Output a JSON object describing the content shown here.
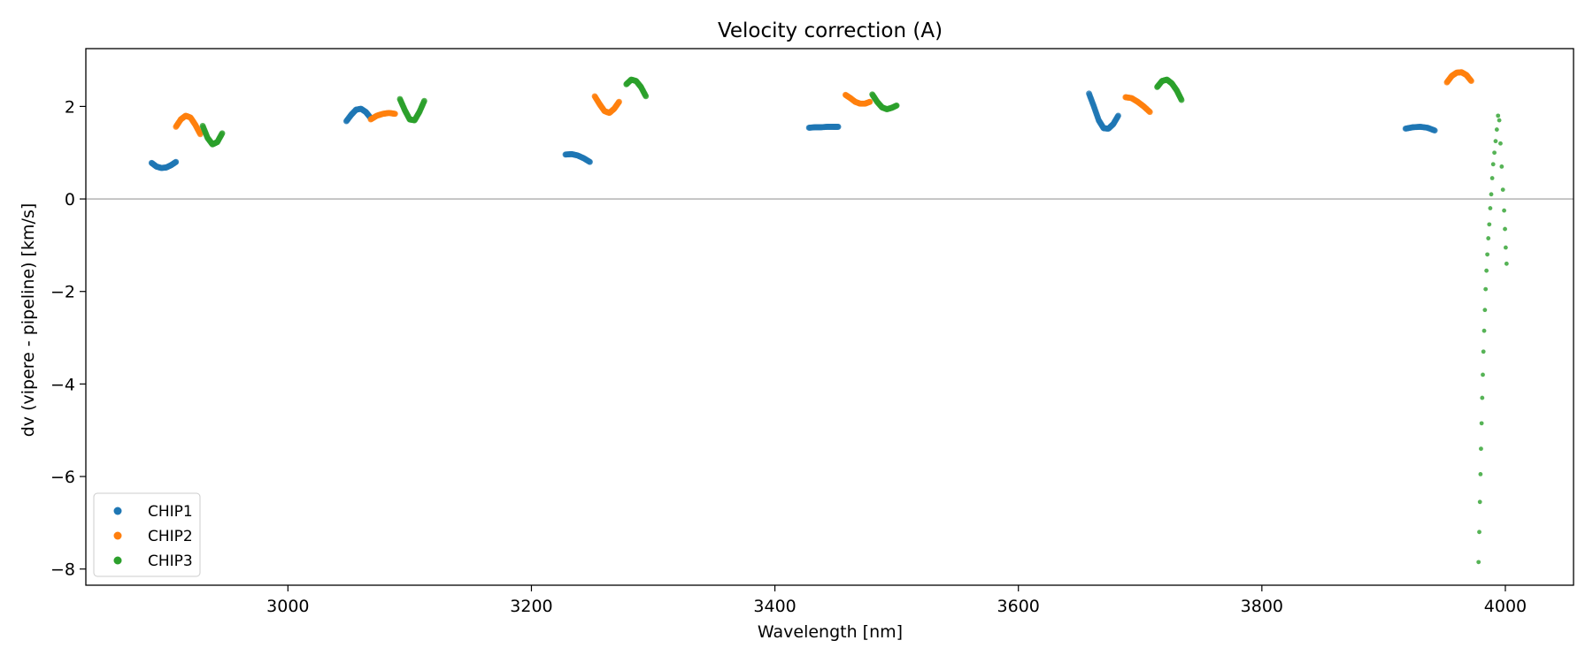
{
  "chart_data": {
    "type": "scatter",
    "title": "Velocity correction (A)",
    "xlabel": "Wavelength [nm]",
    "ylabel": "dv (vipere - pipeline) [km/s]",
    "xlim": [
      2834,
      4056
    ],
    "ylim": [
      -8.35,
      3.25
    ],
    "xticks": [
      3000,
      3200,
      3400,
      3600,
      3800,
      4000
    ],
    "yticks": [
      2,
      0,
      -2,
      -4,
      -6,
      -8
    ],
    "tick_labels": {
      "x": [
        "3000",
        "3200",
        "3400",
        "3600",
        "3800",
        "4000"
      ],
      "y": [
        "2",
        "0",
        "−2",
        "−4",
        "−6",
        "−8"
      ]
    },
    "reference_line": 0,
    "legend_position": "lower-left",
    "series": [
      {
        "name": "CHIP1",
        "color": "#1f77b4",
        "segments": [
          {
            "x": [
              2888,
              2892,
              2896,
              2900,
              2904,
              2908
            ],
            "y": [
              0.78,
              0.7,
              0.67,
              0.68,
              0.73,
              0.8
            ]
          },
          {
            "x": [
              3048,
              3052,
              3056,
              3060,
              3064,
              3068
            ],
            "y": [
              1.68,
              1.82,
              1.93,
              1.95,
              1.88,
              1.75
            ]
          },
          {
            "x": [
              3228,
              3233,
              3238,
              3243,
              3248
            ],
            "y": [
              0.96,
              0.97,
              0.94,
              0.88,
              0.8
            ]
          },
          {
            "x": [
              3428,
              3433,
              3438,
              3443,
              3448,
              3452
            ],
            "y": [
              1.54,
              1.55,
              1.55,
              1.56,
              1.56,
              1.56
            ]
          },
          {
            "x": [
              3658,
              3662,
              3666,
              3670,
              3674,
              3678,
              3682
            ],
            "y": [
              2.28,
              2.0,
              1.7,
              1.53,
              1.52,
              1.62,
              1.8
            ]
          },
          {
            "x": [
              3918,
              3924,
              3930,
              3936,
              3942
            ],
            "y": [
              1.52,
              1.55,
              1.56,
              1.54,
              1.48
            ]
          }
        ]
      },
      {
        "name": "CHIP2",
        "color": "#ff7f0e",
        "segments": [
          {
            "x": [
              2908,
              2912,
              2916,
              2920,
              2924,
              2928
            ],
            "y": [
              1.56,
              1.72,
              1.8,
              1.76,
              1.6,
              1.4
            ]
          },
          {
            "x": [
              3068,
              3073,
              3078,
              3083,
              3088
            ],
            "y": [
              1.72,
              1.8,
              1.84,
              1.86,
              1.84
            ]
          },
          {
            "x": [
              3252,
              3256,
              3260,
              3264,
              3268,
              3272
            ],
            "y": [
              2.22,
              2.05,
              1.9,
              1.86,
              1.95,
              2.1
            ]
          },
          {
            "x": [
              3458,
              3462,
              3466,
              3470,
              3474,
              3478
            ],
            "y": [
              2.25,
              2.18,
              2.1,
              2.06,
              2.06,
              2.1
            ]
          },
          {
            "x": [
              3688,
              3693,
              3698,
              3703,
              3708
            ],
            "y": [
              2.2,
              2.18,
              2.1,
              2.0,
              1.88
            ]
          },
          {
            "x": [
              3952,
              3956,
              3960,
              3964,
              3968,
              3972
            ],
            "y": [
              2.52,
              2.66,
              2.73,
              2.74,
              2.68,
              2.55
            ]
          }
        ]
      },
      {
        "name": "CHIP3",
        "color": "#2ca02c",
        "segments": [
          {
            "x": [
              2930,
              2934,
              2938,
              2942,
              2946
            ],
            "y": [
              1.58,
              1.32,
              1.18,
              1.23,
              1.42
            ]
          },
          {
            "x": [
              3092,
              3096,
              3100,
              3104,
              3108,
              3112
            ],
            "y": [
              2.16,
              1.92,
              1.72,
              1.7,
              1.88,
              2.12
            ]
          },
          {
            "x": [
              3278,
              3282,
              3286,
              3290,
              3294
            ],
            "y": [
              2.48,
              2.58,
              2.55,
              2.42,
              2.22
            ]
          },
          {
            "x": [
              3480,
              3484,
              3488,
              3492,
              3496,
              3500
            ],
            "y": [
              2.26,
              2.1,
              1.98,
              1.94,
              1.97,
              2.02
            ]
          },
          {
            "x": [
              3714,
              3718,
              3722,
              3726,
              3730,
              3734
            ],
            "y": [
              2.42,
              2.55,
              2.58,
              2.5,
              2.35,
              2.14
            ]
          }
        ],
        "sparse": {
          "x": [
            3978,
            3978.6,
            3979.1,
            3979.6,
            3980,
            3980.5,
            3981,
            3981.5,
            3982,
            3982.6,
            3983.2,
            3983.8,
            3984.5,
            3985.2,
            3986,
            3986.8,
            3987.6,
            3988.4,
            3989.2,
            3990,
            3991,
            3992,
            3993,
            3994,
            3995,
            3996,
            3997,
            3998,
            3999,
            3999.7,
            4000.3,
            4001
          ],
          "y": [
            -7.85,
            -7.2,
            -6.55,
            -5.95,
            -5.4,
            -4.85,
            -4.3,
            -3.8,
            -3.3,
            -2.85,
            -2.4,
            -1.95,
            -1.55,
            -1.2,
            -0.85,
            -0.55,
            -0.2,
            0.1,
            0.45,
            0.75,
            1.0,
            1.25,
            1.5,
            1.8,
            1.7,
            1.2,
            0.7,
            0.2,
            -0.25,
            -0.65,
            -1.05,
            -1.4
          ]
        }
      }
    ]
  }
}
